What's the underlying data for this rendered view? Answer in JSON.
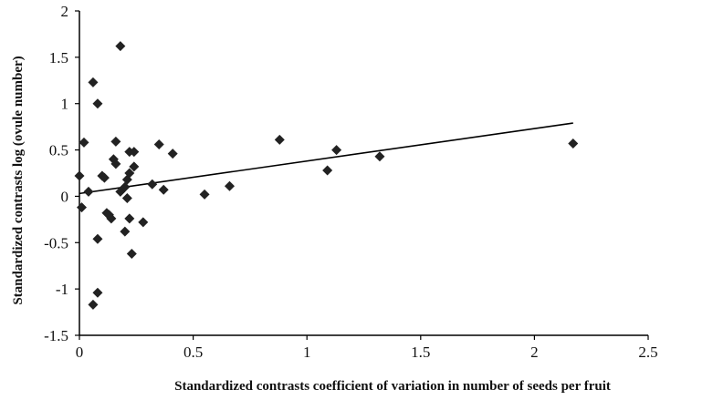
{
  "chart_data": {
    "type": "scatter",
    "xlabel": "Standardized contrasts coefficient of variation in number of seeds per fruit",
    "ylabel": "Standardized contrasts log (ovule number)",
    "xlim": [
      0,
      2.5
    ],
    "ylim": [
      -1.5,
      2
    ],
    "x_ticks": [
      "0",
      "0.5",
      "1",
      "1.5",
      "2",
      "2.5"
    ],
    "y_ticks": [
      "-1.5",
      "-1",
      "-0.5",
      "0",
      "0.5",
      "1",
      "1.5",
      "2"
    ],
    "grid": false,
    "legend": "none",
    "marker": "diamond",
    "marker_color": "#222222",
    "points": [
      {
        "x": 0.0,
        "y": 0.22
      },
      {
        "x": 0.01,
        "y": -0.12
      },
      {
        "x": 0.02,
        "y": 0.58
      },
      {
        "x": 0.04,
        "y": 0.05
      },
      {
        "x": 0.06,
        "y": 1.23
      },
      {
        "x": 0.06,
        "y": -1.17
      },
      {
        "x": 0.08,
        "y": 1.0
      },
      {
        "x": 0.08,
        "y": -0.46
      },
      {
        "x": 0.08,
        "y": -1.04
      },
      {
        "x": 0.1,
        "y": 0.22
      },
      {
        "x": 0.11,
        "y": 0.2
      },
      {
        "x": 0.12,
        "y": -0.18
      },
      {
        "x": 0.13,
        "y": -0.2
      },
      {
        "x": 0.14,
        "y": -0.24
      },
      {
        "x": 0.15,
        "y": 0.4
      },
      {
        "x": 0.16,
        "y": 0.35
      },
      {
        "x": 0.16,
        "y": 0.59
      },
      {
        "x": 0.18,
        "y": 1.62
      },
      {
        "x": 0.18,
        "y": 0.05
      },
      {
        "x": 0.2,
        "y": 0.1
      },
      {
        "x": 0.2,
        "y": -0.38
      },
      {
        "x": 0.21,
        "y": -0.02
      },
      {
        "x": 0.21,
        "y": 0.18
      },
      {
        "x": 0.22,
        "y": 0.25
      },
      {
        "x": 0.22,
        "y": -0.24
      },
      {
        "x": 0.22,
        "y": 0.48
      },
      {
        "x": 0.23,
        "y": -0.62
      },
      {
        "x": 0.24,
        "y": 0.48
      },
      {
        "x": 0.24,
        "y": 0.32
      },
      {
        "x": 0.28,
        "y": -0.28
      },
      {
        "x": 0.32,
        "y": 0.13
      },
      {
        "x": 0.35,
        "y": 0.56
      },
      {
        "x": 0.37,
        "y": 0.07
      },
      {
        "x": 0.41,
        "y": 0.46
      },
      {
        "x": 0.55,
        "y": 0.02
      },
      {
        "x": 0.66,
        "y": 0.11
      },
      {
        "x": 0.88,
        "y": 0.61
      },
      {
        "x": 1.09,
        "y": 0.28
      },
      {
        "x": 1.13,
        "y": 0.5
      },
      {
        "x": 1.32,
        "y": 0.43
      },
      {
        "x": 2.17,
        "y": 0.57
      }
    ],
    "trendline": {
      "x": [
        0,
        2.17
      ],
      "y": [
        0.03,
        0.79
      ]
    }
  }
}
